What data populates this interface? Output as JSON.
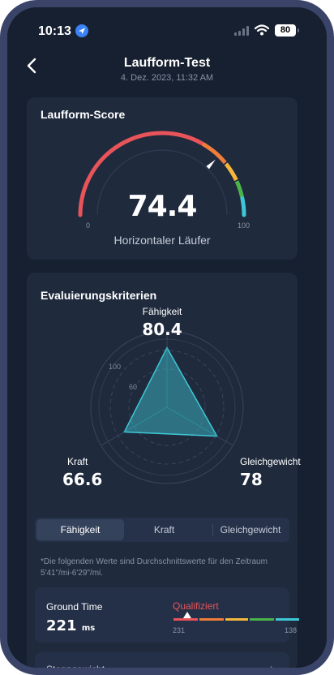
{
  "status_bar": {
    "time": "10:13",
    "battery": "80"
  },
  "nav": {
    "title": "Laufform-Test",
    "subtitle": "4. Dez. 2023, 11:32 AM"
  },
  "score_card": {
    "title": "Laufform-Score",
    "score": "74.4",
    "score_fraction": 0.744,
    "label": "Horizontaler Läufer",
    "min": "0",
    "max": "100",
    "colors": [
      "#e8545a",
      "#f07d3a",
      "#f5b73b",
      "#4cb34a",
      "#3ec8d6"
    ]
  },
  "eval_card": {
    "title": "Evaluierungskriterien",
    "axes": [
      {
        "label": "Fähigkeit",
        "value": "80.4",
        "numeric": 80.4
      },
      {
        "label": "Kraft",
        "value": "66.6",
        "numeric": 66.6
      },
      {
        "label": "Gleichgewicht",
        "value": "78",
        "numeric": 78
      }
    ],
    "ticks": [
      "100",
      "60"
    ],
    "tabs": [
      "Fähigkeit",
      "Kraft",
      "Gleichgewicht"
    ],
    "active_tab": 0,
    "note": "*Die folgenden Werte sind Durchschnittswerte für den Zeitraum 5'41\"/mi-6'29\"/mi.",
    "metric": {
      "title": "Ground Time",
      "value": "221",
      "unit": "ms",
      "status": "Qualifiziert",
      "min": "231",
      "max": "138"
    },
    "next_metric_title": "Stoppgewicht"
  }
}
